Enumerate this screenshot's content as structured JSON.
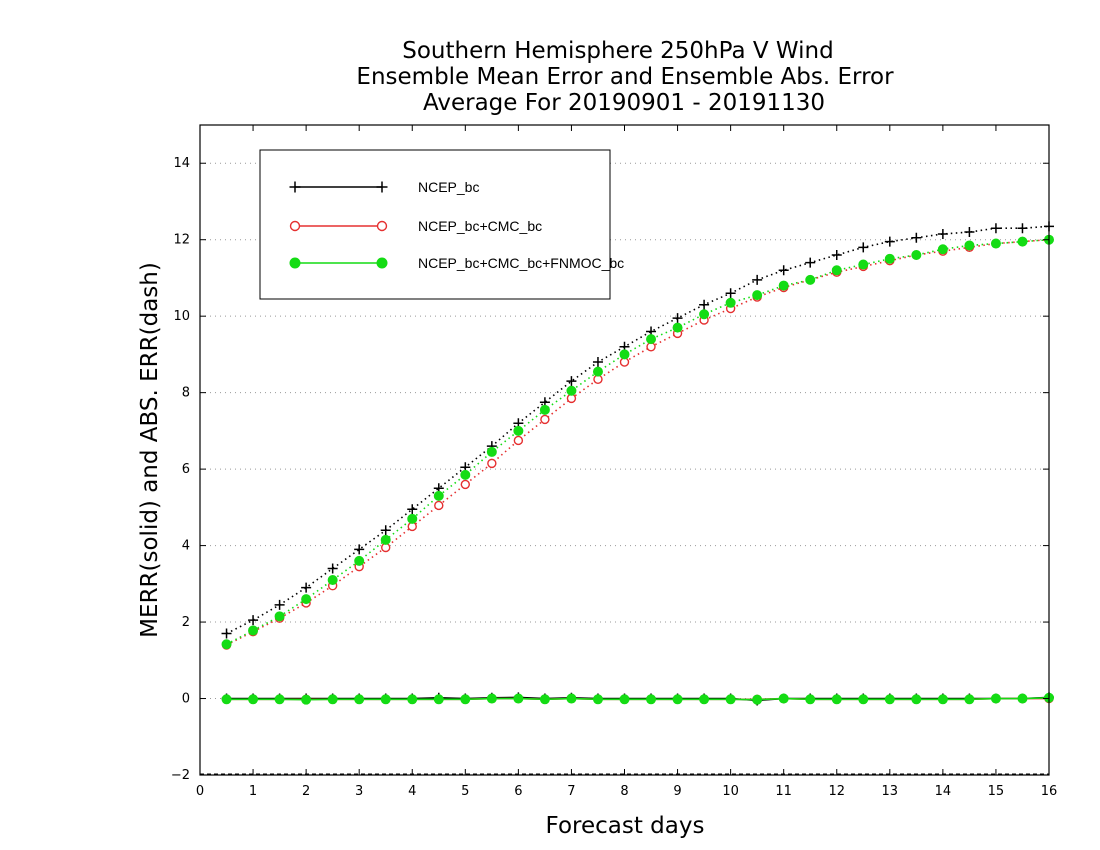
{
  "chart_data": {
    "type": "line",
    "title": [
      "Southern Hemisphere 250hPa V Wind",
      "Ensemble Mean Error and Ensemble Abs. Error",
      "Average For 20190901 - 20191130"
    ],
    "xlabel": "Forecast days",
    "ylabel": "MERR(solid) and ABS. ERR(dash)",
    "xlim": [
      0,
      16
    ],
    "ylim": [
      -2,
      15
    ],
    "xticks": [
      0,
      1,
      2,
      3,
      4,
      5,
      6,
      7,
      8,
      9,
      10,
      11,
      12,
      13,
      14,
      15,
      16
    ],
    "xtick_labels": [
      "0",
      "1",
      "2",
      "3",
      "4",
      "5",
      "6",
      "7",
      "8",
      "9",
      "10",
      "11",
      "12",
      "13",
      "14",
      "15",
      "16"
    ],
    "yticks": [
      -2,
      0,
      2,
      4,
      6,
      8,
      10,
      12,
      14
    ],
    "ytick_labels": [
      "−2",
      "0",
      "2",
      "4",
      "6",
      "8",
      "10",
      "12",
      "14"
    ],
    "grid": "horizontal dotted",
    "legend_position": "top-left",
    "x": [
      0.5,
      1,
      1.5,
      2,
      2.5,
      3,
      3.5,
      4,
      4.5,
      5,
      5.5,
      6,
      6.5,
      7,
      7.5,
      8,
      8.5,
      9,
      9.5,
      10,
      10.5,
      11,
      11.5,
      12,
      12.5,
      13,
      13.5,
      14,
      14.5,
      15,
      15.5,
      16
    ],
    "series": [
      {
        "name": "NCEP_bc",
        "color": "#000000",
        "marker": "plus",
        "abs_err": [
          1.7,
          2.05,
          2.45,
          2.9,
          3.4,
          3.9,
          4.4,
          4.95,
          5.5,
          6.05,
          6.6,
          7.2,
          7.75,
          8.3,
          8.8,
          9.2,
          9.6,
          9.95,
          10.3,
          10.6,
          10.95,
          11.2,
          11.4,
          11.6,
          11.8,
          11.95,
          12.05,
          12.15,
          12.2,
          12.3,
          12.3,
          12.35
        ],
        "mean_err": [
          0.0,
          0.0,
          0.0,
          0.0,
          0.0,
          0.0,
          0.0,
          0.0,
          0.02,
          0.0,
          0.02,
          0.03,
          0.0,
          0.02,
          0.0,
          0.0,
          0.0,
          0.0,
          0.0,
          0.0,
          -0.05,
          0.0,
          0.0,
          0.0,
          0.0,
          0.0,
          0.0,
          0.0,
          0.0,
          0.0,
          0.0,
          0.03
        ]
      },
      {
        "name": "NCEP_bc+CMC_bc",
        "color": "#e53030",
        "marker": "open-circle",
        "abs_err": [
          1.4,
          1.75,
          2.1,
          2.5,
          2.95,
          3.45,
          3.95,
          4.5,
          5.05,
          5.6,
          6.15,
          6.75,
          7.3,
          7.85,
          8.35,
          8.8,
          9.2,
          9.55,
          9.9,
          10.2,
          10.5,
          10.75,
          10.95,
          11.15,
          11.3,
          11.45,
          11.6,
          11.7,
          11.8,
          11.9,
          11.95,
          12.0
        ],
        "mean_err": [
          -0.02,
          -0.02,
          -0.02,
          -0.02,
          -0.02,
          -0.02,
          -0.02,
          -0.02,
          -0.02,
          -0.02,
          0.0,
          0.0,
          -0.02,
          0.0,
          -0.02,
          -0.02,
          -0.02,
          -0.02,
          -0.02,
          -0.02,
          -0.02,
          0.0,
          -0.02,
          -0.02,
          -0.02,
          -0.02,
          -0.02,
          -0.02,
          -0.02,
          0.0,
          0.0,
          0.0
        ]
      },
      {
        "name": "NCEP_bc+CMC_bc+FNMOC_bc",
        "color": "#14dc14",
        "marker": "filled-circle",
        "abs_err": [
          1.42,
          1.78,
          2.15,
          2.6,
          3.1,
          3.6,
          4.15,
          4.7,
          5.3,
          5.85,
          6.45,
          7.0,
          7.55,
          8.05,
          8.55,
          9.0,
          9.4,
          9.7,
          10.05,
          10.35,
          10.55,
          10.8,
          10.95,
          11.2,
          11.35,
          11.5,
          11.6,
          11.75,
          11.85,
          11.9,
          11.95,
          12.0
        ],
        "mean_err": [
          -0.02,
          -0.02,
          -0.02,
          -0.03,
          -0.02,
          -0.02,
          -0.02,
          -0.02,
          -0.02,
          -0.02,
          0.0,
          0.0,
          -0.02,
          0.0,
          -0.02,
          -0.02,
          -0.02,
          -0.02,
          -0.02,
          -0.02,
          -0.03,
          0.0,
          -0.02,
          -0.02,
          -0.02,
          -0.02,
          -0.02,
          -0.02,
          -0.02,
          0.0,
          0.0,
          0.02
        ]
      }
    ]
  }
}
